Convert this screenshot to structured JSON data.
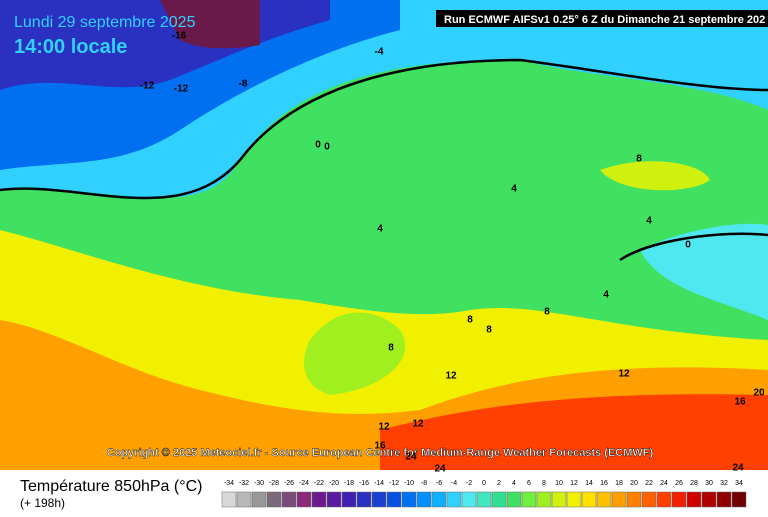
{
  "header": {
    "date": "Lundi 29 septembre 2025",
    "time": "14:00 locale",
    "run": "Run ECMWF AIFSv1 0.25° 6 Z du Dimanche 21 septembre 202"
  },
  "map": {
    "copyright": "Copyright © 2025 Meteociel.fr - Source European Centre for Medium-Range Weather Forecasts (ECMWF)",
    "contour_labels": [
      -16,
      -4,
      -12,
      -12,
      -8,
      0,
      0,
      8,
      4,
      4,
      4,
      0,
      4,
      8,
      8,
      8,
      8,
      12,
      12,
      20,
      16,
      12,
      12,
      16,
      24,
      24,
      24
    ]
  },
  "legend": {
    "title": "Température 850hPa (°C)",
    "subtitle": "(+ 198h)",
    "ticks": [
      -34,
      -32,
      -30,
      -28,
      -26,
      -24,
      -22,
      -20,
      -18,
      -16,
      -14,
      -12,
      -10,
      -8,
      -6,
      -4,
      -2,
      0,
      2,
      4,
      6,
      8,
      10,
      12,
      14,
      16,
      18,
      20,
      22,
      24,
      26,
      28,
      30,
      32,
      34
    ],
    "colors": [
      "#d8d8d8",
      "#b8b8b8",
      "#989898",
      "#7a6a7a",
      "#7a4a7a",
      "#8a2a7a",
      "#6a1a8a",
      "#5a1aa0",
      "#4020b0",
      "#2a30c0",
      "#1a40d0",
      "#0a50e0",
      "#0070f0",
      "#0090ff",
      "#10b0ff",
      "#30d0ff",
      "#50e8f0",
      "#40e8c0",
      "#30e090",
      "#40e060",
      "#70f040",
      "#a0f020",
      "#d0f010",
      "#f0f000",
      "#ffe000",
      "#ffc000",
      "#ffa000",
      "#ff8000",
      "#ff6000",
      "#ff4000",
      "#f02000",
      "#d00000",
      "#b00000",
      "#900000",
      "#700000"
    ]
  }
}
